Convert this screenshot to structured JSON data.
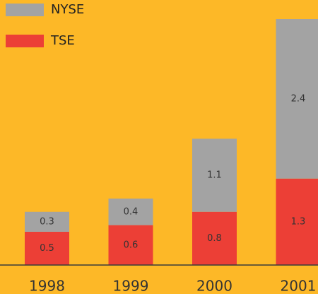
{
  "chart_data": {
    "type": "stacked_bar",
    "categories": [
      "1998",
      "1999",
      "2000",
      "2001"
    ],
    "series": [
      {
        "name": "TSE",
        "color": "#ec3f36",
        "values": [
          0.5,
          0.6,
          0.8,
          1.3
        ]
      },
      {
        "name": "NYSE",
        "color": "#a3a3a3",
        "values": [
          0.3,
          0.4,
          1.1,
          2.4
        ]
      }
    ]
  }
}
